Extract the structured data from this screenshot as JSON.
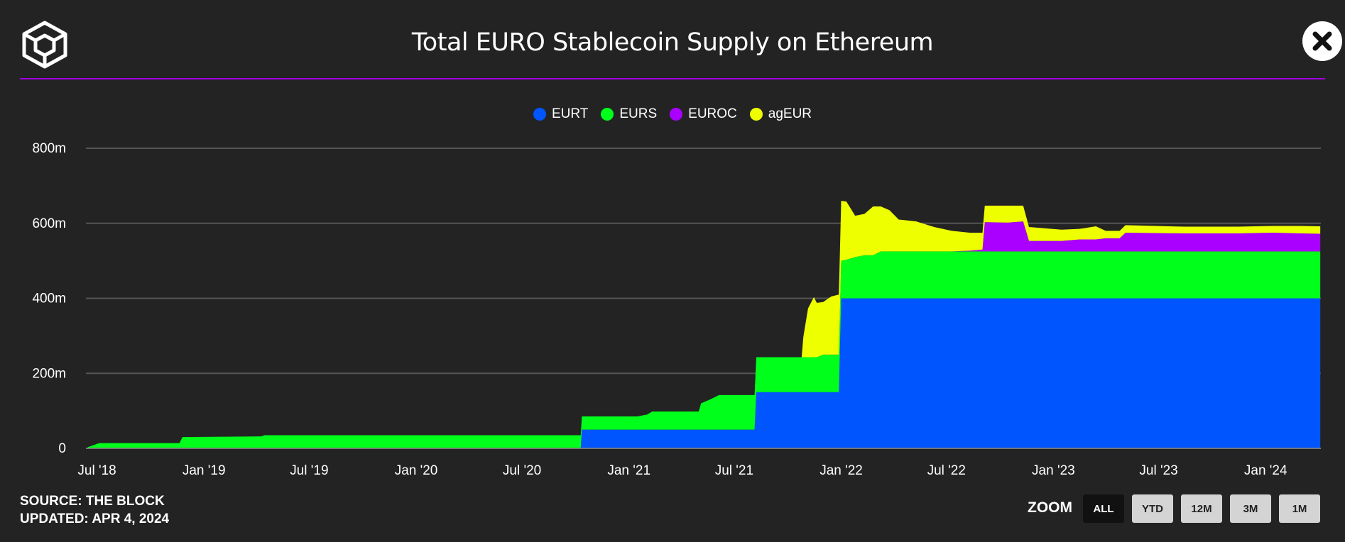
{
  "header": {
    "title": "Total EURO Stablecoin Supply on Ethereum"
  },
  "footer": {
    "source": "SOURCE: THE BLOCK",
    "updated": "UPDATED: APR 4, 2024"
  },
  "zoom": {
    "label": "ZOOM",
    "buttons": [
      "ALL",
      "YTD",
      "12M",
      "3M",
      "1M"
    ],
    "active": "ALL"
  },
  "colors": {
    "EURT": "#0055ff",
    "EURS": "#00ff1a",
    "EUROC": "#aa00ff",
    "agEUR": "#eeff00",
    "accent": "#a000e0"
  },
  "chart_data": {
    "type": "area",
    "stacked": true,
    "title": "Total EURO Stablecoin Supply on Ethereum",
    "ylim": [
      0,
      800
    ],
    "y_unit": "m",
    "y_ticks": [
      "0",
      "200m",
      "400m",
      "600m",
      "800m"
    ],
    "x_ticks": [
      "Jul '18",
      "Jan '19",
      "Jul '19",
      "Jan '20",
      "Jul '20",
      "Jan '21",
      "Jul '21",
      "Jan '22",
      "Jul '22",
      "Jan '23",
      "Jul '23",
      "Jan '24"
    ],
    "legend": [
      "EURT",
      "EURS",
      "EUROC",
      "agEUR"
    ],
    "legend_position": "top-center",
    "grid": true,
    "x": [
      "2018-06-15",
      "2018-07-05",
      "2018-11-20",
      "2018-11-25",
      "2019-04-10",
      "2019-04-15",
      "2020-10-10",
      "2020-10-12",
      "2021-01-15",
      "2021-02-01",
      "2021-02-10",
      "2021-05-01",
      "2021-05-05",
      "2021-05-20",
      "2021-06-05",
      "2021-08-05",
      "2021-08-08",
      "2021-10-25",
      "2021-10-28",
      "2021-11-05",
      "2021-11-15",
      "2021-11-20",
      "2021-12-01",
      "2021-12-15",
      "2021-12-28",
      "2022-01-01",
      "2022-01-10",
      "2022-01-25",
      "2022-02-10",
      "2022-02-25",
      "2022-03-10",
      "2022-03-25",
      "2022-04-10",
      "2022-05-10",
      "2022-06-10",
      "2022-07-10",
      "2022-08-10",
      "2022-09-01",
      "2022-09-05",
      "2022-10-15",
      "2022-11-10",
      "2022-11-20",
      "2023-01-15",
      "2023-02-15",
      "2023-03-15",
      "2023-04-01",
      "2023-04-25",
      "2023-05-05",
      "2023-08-15",
      "2023-11-15",
      "2024-01-15",
      "2024-03-01",
      "2024-04-04"
    ],
    "series": [
      {
        "name": "EURT",
        "values": [
          0,
          0,
          0,
          0,
          0,
          0,
          0,
          50,
          50,
          50,
          50,
          50,
          50,
          50,
          50,
          50,
          150,
          150,
          150,
          150,
          150,
          150,
          150,
          150,
          150,
          400,
          400,
          400,
          400,
          400,
          400,
          400,
          400,
          400,
          400,
          400,
          400,
          400,
          400,
          400,
          400,
          400,
          400,
          400,
          400,
          400,
          400,
          400,
          400,
          400,
          400,
          400,
          400
        ]
      },
      {
        "name": "EURS",
        "values": [
          3,
          14,
          14,
          30,
          32,
          35,
          35,
          35,
          35,
          40,
          48,
          48,
          70,
          80,
          92,
          92,
          93,
          93,
          93,
          93,
          93,
          93,
          100,
          100,
          100,
          100,
          103,
          110,
          115,
          115,
          125,
          125,
          125,
          125,
          125,
          125,
          125,
          125,
          125,
          125,
          125,
          125,
          125,
          125,
          125,
          125,
          125,
          125,
          125,
          125,
          125,
          125,
          125
        ]
      },
      {
        "name": "EUROC",
        "values": [
          0,
          0,
          0,
          0,
          0,
          0,
          0,
          0,
          0,
          0,
          0,
          0,
          0,
          0,
          0,
          0,
          0,
          0,
          0,
          0,
          0,
          0,
          0,
          0,
          0,
          0,
          0,
          0,
          0,
          0,
          0,
          0,
          0,
          0,
          0,
          0,
          2,
          5,
          78,
          77,
          80,
          28,
          28,
          32,
          32,
          35,
          35,
          50,
          48,
          48,
          50,
          48,
          47
        ]
      },
      {
        "name": "agEUR",
        "values": [
          0,
          0,
          0,
          0,
          0,
          0,
          0,
          0,
          0,
          0,
          0,
          0,
          0,
          0,
          0,
          0,
          0,
          0,
          55,
          130,
          160,
          145,
          140,
          155,
          160,
          160,
          155,
          110,
          110,
          130,
          120,
          110,
          85,
          80,
          65,
          55,
          48,
          45,
          44,
          45,
          42,
          37,
          30,
          28,
          35,
          20,
          20,
          20,
          18,
          18,
          18,
          20,
          20
        ]
      }
    ]
  }
}
